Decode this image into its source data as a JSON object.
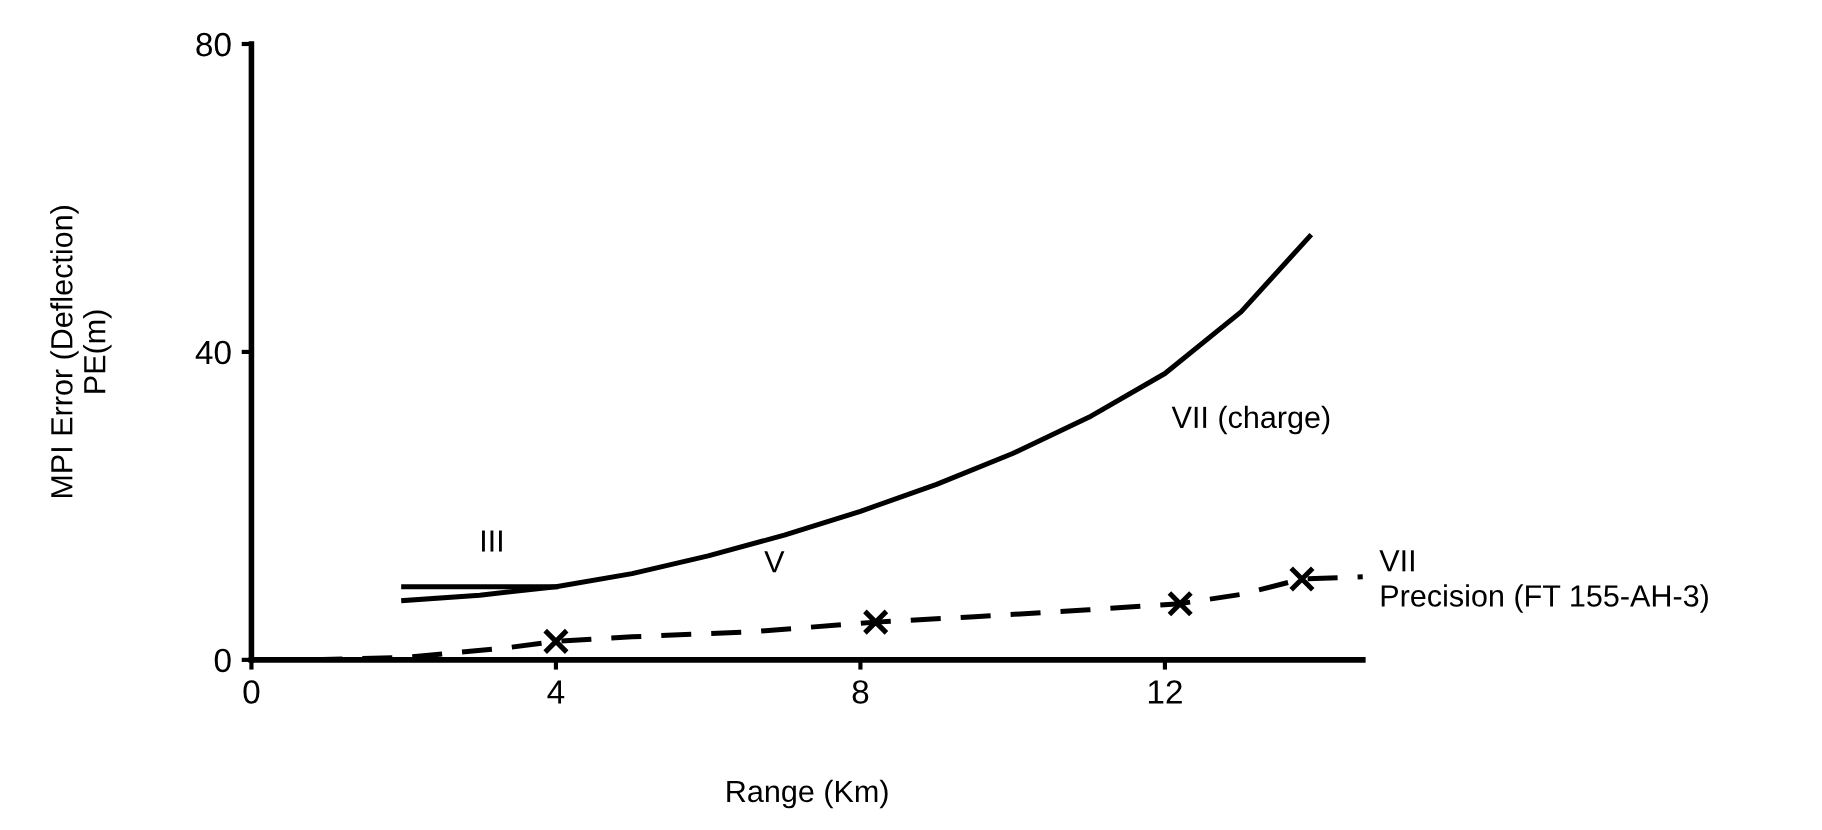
{
  "chart_data": {
    "type": "line",
    "xlabel": "Range (Km)",
    "ylabel": "MPI Error (Deflection)\nPE(m)",
    "xlim": [
      0,
      14.6
    ],
    "ylim": [
      0,
      80
    ],
    "xticks": [
      0,
      4,
      8,
      12
    ],
    "yticks": [
      0,
      40,
      80
    ],
    "grid": false,
    "series": [
      {
        "color": "#000000",
        "line_style": "solid",
        "x": [
          2,
          3,
          4,
          5,
          6,
          7,
          8,
          9,
          10,
          11,
          12,
          13,
          13.9
        ],
        "values": [
          7.7,
          8.4,
          9.5,
          11.2,
          13.5,
          16.2,
          19.3,
          22.8,
          26.8,
          31.5,
          37.2,
          45.2,
          55
        ]
      },
      {
        "color": "#000000",
        "line_style": "solid",
        "x": [
          2,
          3,
          4
        ],
        "values": [
          9.5,
          9.5,
          9.5
        ]
      },
      {
        "color": "#000000",
        "line_style": "dashed",
        "x": [
          0.8,
          2,
          3.3,
          4,
          5,
          6.5,
          8.2,
          9.5,
          11,
          12.2,
          13,
          13.8,
          14.6
        ],
        "values": [
          0,
          0.3,
          1.5,
          2.4,
          3,
          3.6,
          4.9,
          5.6,
          6.5,
          7.3,
          8.5,
          10.5,
          10.8
        ]
      },
      {
        "type": "scatter",
        "color": "#000000",
        "marker": "cross",
        "x": [
          4,
          8.2,
          12.2,
          13.8
        ],
        "values": [
          2.4,
          4.9,
          7.3,
          10.5
        ]
      }
    ],
    "annotations": [
      "III",
      "V",
      "VII (charge)",
      "VII\nPrecision (FT 155-AH-3)"
    ]
  }
}
